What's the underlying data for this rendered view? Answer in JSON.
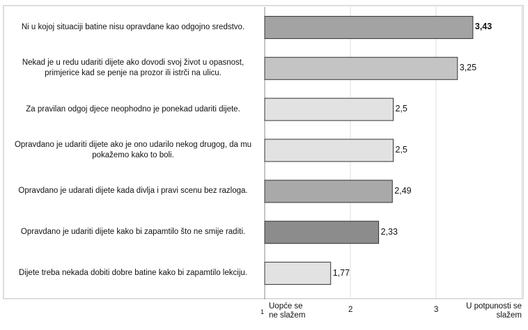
{
  "chart_data": {
    "type": "bar",
    "orientation": "horizontal",
    "categories": [
      "Ni u kojoj situaciji batine nisu opravdane kao odgojno sredstvo.",
      "Nekad je u redu udariti dijete ako dovodi svoj život u opasnost, primjerice kad se penje na prozor ili istrči na ulicu.",
      "Za pravilan odgoj djece neophodno je ponekad udariti dijete.",
      "Opravdano je udariti dijete ako je ono udarilo nekog drugog, da mu pokažemo kako to boli.",
      "Opravdano je udarati dijete kada divlja i pravi scenu bez razloga.",
      "Opravdano je udariti dijete kako bi zapamtilo što ne smije raditi.",
      "Dijete treba nekada dobiti dobre batine kako bi zapamtilo lekciju."
    ],
    "values": [
      3.43,
      3.25,
      2.5,
      2.5,
      2.49,
      2.33,
      1.77
    ],
    "value_labels": [
      "3,43",
      "3,25",
      "2,5",
      "2,5",
      "2,49",
      "2,33",
      "1,77"
    ],
    "colors": [
      "#a3a3a3",
      "#c4c4c4",
      "#e2e2e2",
      "#e2e2e2",
      "#a9a9a9",
      "#8c8c8c",
      "#e2e2e2"
    ],
    "xlim": [
      1,
      4
    ],
    "xticks": [
      1,
      2,
      3,
      {
        "value": 4,
        "label": "U potpunosti se slažem"
      }
    ],
    "annotations": [
      "Uopće se ne slažem"
    ],
    "grid": true
  }
}
